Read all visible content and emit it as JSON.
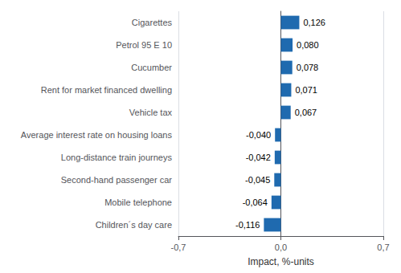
{
  "chart_data": {
    "type": "bar",
    "orientation": "horizontal",
    "categories": [
      "Children´s day care",
      "Mobile telephone",
      "Second-hand passenger car",
      "Long-distance train journeys",
      "Average interest rate on housing loans",
      "Vehicle tax",
      "Rent for market financed dwelling",
      "Cucumber",
      "Petrol 95 E 10",
      "Cigarettes"
    ],
    "values": [
      -0.116,
      -0.064,
      -0.045,
      -0.042,
      -0.04,
      0.067,
      0.071,
      0.078,
      0.08,
      0.126
    ],
    "value_labels": [
      "-0,116",
      "-0,064",
      "-0,045",
      "-0,042",
      "-0,040",
      "0,067",
      "0,071",
      "0,078",
      "0,080",
      "0,126"
    ],
    "data_labels": true,
    "color": "#1F6AAF",
    "xlabel": "Impact, %-units",
    "xlim": [
      -0.7,
      0.7
    ],
    "xticks": [
      {
        "value": -0.7,
        "label": "-0,7"
      },
      {
        "value": 0.0,
        "label": "0,0"
      },
      {
        "value": 0.7,
        "label": "0,7"
      }
    ],
    "grid": true
  }
}
